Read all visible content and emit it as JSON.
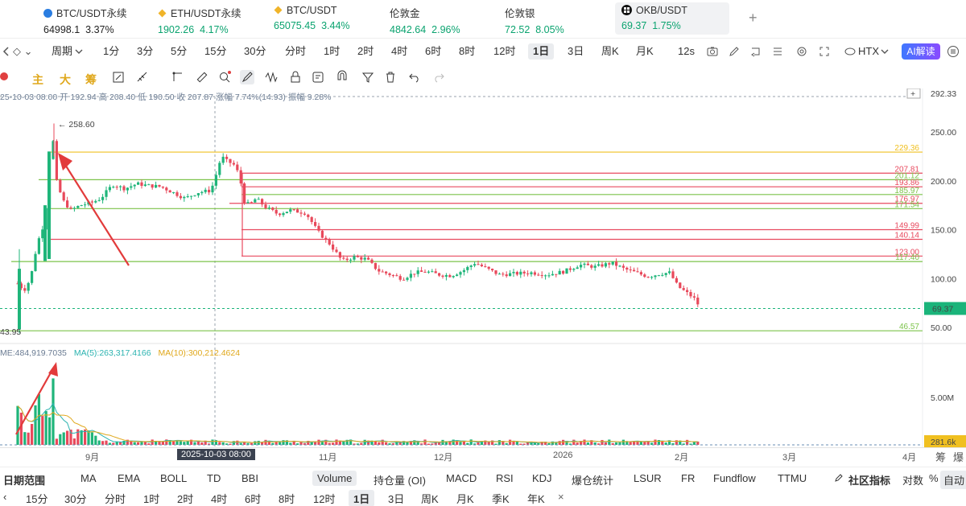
{
  "tickers": [
    {
      "name": "BTC/USDT永续",
      "price": "64998.1",
      "change": "3.37%",
      "price_color": "dark",
      "icon": "btc-dot-icon",
      "x": 54
    },
    {
      "name": "ETH/USDT永续",
      "price": "1902.26",
      "change": "4.17%",
      "price_color": "up",
      "icon": "eth-diamond-icon",
      "x": 196
    },
    {
      "name": "BTC/USDT",
      "price": "65075.45",
      "change": "3.44%",
      "price_color": "up",
      "icon": "btc-diamond-icon",
      "x": 340
    },
    {
      "name": "伦敦金",
      "price": "4842.64",
      "change": "2.96%",
      "price_color": "up",
      "icon": "",
      "x": 484
    },
    {
      "name": "伦敦银",
      "price": "72.52",
      "change": "8.05%",
      "price_color": "up",
      "icon": "",
      "x": 627
    },
    {
      "name": "OKB/USDT",
      "price": "69.37",
      "change": "1.75%",
      "price_color": "up",
      "icon": "okb-icon",
      "x": 770
    }
  ],
  "add_tab_label": "+",
  "toolbar": {
    "period_label": "周期",
    "periods": [
      "1分",
      "3分",
      "5分",
      "15分",
      "30分",
      "分时",
      "1时",
      "2时",
      "4时",
      "6时",
      "8时",
      "12时",
      "1日",
      "3日",
      "周K",
      "月K"
    ],
    "selected_period": "1日",
    "refresh": "12s",
    "exchange": "HTX",
    "ai_label": "AI解读"
  },
  "drawbar": {
    "main_label": "主",
    "big_label": "大",
    "chips_label": "筹"
  },
  "ohlc_line": "25-10-03 08:00  开 192.94  高 208.40  低 190.50  收 207.87  涨幅 7.74%(14.93)  振幅 9.28%",
  "price_axis": {
    "top_label": "292.33",
    "ticks": [
      "250.00",
      "200.00",
      "150.00",
      "100.00",
      "50.00"
    ],
    "current_price": "69.37",
    "current_price_color": "#1ab47a"
  },
  "levels": [
    {
      "value": "229.36",
      "color": "#f0c020"
    },
    {
      "value": "207.81",
      "color": "#e84a5f"
    },
    {
      "value": "201.12",
      "color": "#7cc34a"
    },
    {
      "value": "193.86",
      "color": "#e84a5f"
    },
    {
      "value": "185.97",
      "color": "#7cc34a"
    },
    {
      "value": "176.97",
      "color": "#e84a5f"
    },
    {
      "value": "171.54",
      "color": "#7cc34a"
    },
    {
      "value": "149.99",
      "color": "#e84a5f"
    },
    {
      "value": "140.14",
      "color": "#e84a5f"
    },
    {
      "value": "123.00",
      "color": "#e84a5f"
    },
    {
      "value": "117.40",
      "color": "#7cc34a"
    },
    {
      "value": "46.57",
      "color": "#7cc34a"
    }
  ],
  "annotations": {
    "high_label": "258.60",
    "low_label": "43.95"
  },
  "volume": {
    "legend_vol": "ME:484,919.7035",
    "legend_ma5": "MA(5):263,317.4166",
    "legend_ma10": "MA(10):300,212.4624",
    "axis_tick": "5.00M",
    "current_vol": "281.6k"
  },
  "x_axis": {
    "labels": [
      {
        "text": "9月",
        "x": 106
      },
      {
        "text": "11月",
        "x": 396
      },
      {
        "text": "12月",
        "x": 539
      },
      {
        "text": "2026",
        "x": 687
      },
      {
        "text": "2月",
        "x": 838
      },
      {
        "text": "3月",
        "x": 972
      },
      {
        "text": "4月",
        "x": 1121
      }
    ],
    "crosshair_label": "2025-10-03 08:00"
  },
  "indicators": {
    "range_label": "日期范围",
    "items": [
      "MA",
      "EMA",
      "BOLL",
      "TD",
      "BBI",
      "Volume",
      "持仓量 (OI)",
      "MACD",
      "RSI",
      "KDJ",
      "爆仓统计",
      "LSUR",
      "FR",
      "Fundflow",
      "TTMU"
    ],
    "selected": "Volume",
    "community": "社区指标",
    "log_label": "对数",
    "pct_label": "%",
    "auto_label": "自动",
    "side_labels": [
      "筹",
      "爆"
    ]
  },
  "period_bar2": [
    "15分",
    "30分",
    "分时",
    "1时",
    "2时",
    "4时",
    "6时",
    "8时",
    "12时",
    "1日",
    "3日",
    "周K",
    "月K",
    "季K",
    "年K"
  ],
  "period_bar2_selected": "1日",
  "chart_data": {
    "type": "candlestick",
    "symbol": "OKB/USDT",
    "interval": "1日",
    "high": 258.6,
    "low": 43.95,
    "last": 69.37,
    "ylim": [
      35,
      292.33
    ]
  }
}
